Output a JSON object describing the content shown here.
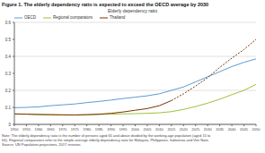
{
  "chart_data": {
    "type": "line",
    "title": "Figure 1. The elderly dependency ratio is expected to exceed the OECD average by 2030",
    "subtitle": "Elderly dependency ratio",
    "annotations": [
      "Note: The elderly dependency ratio is the number of persons aged 65 and above divided by the working-age population (aged 15 to",
      "64). Regional comparators refer to the simple average elderly dependency ratio for Malaysia, Philippines, Indonesia and Viet Nam.",
      "Source: UN Population projections, 2017 revision."
    ],
    "x": [
      1950,
      1955,
      1960,
      1965,
      1970,
      1975,
      1980,
      1985,
      1990,
      1995,
      2000,
      2005,
      2010,
      2015,
      2020,
      2025,
      2030,
      2035,
      2040,
      2045,
      2050
    ],
    "series": [
      {
        "name": "OECD",
        "color": "#5b9bd5",
        "line_style": "solid",
        "values": [
          0.098,
          0.1,
          0.103,
          0.11,
          0.115,
          0.12,
          0.128,
          0.135,
          0.143,
          0.152,
          0.16,
          0.168,
          0.18,
          0.2,
          0.22,
          0.25,
          0.28,
          0.31,
          0.34,
          0.365,
          0.385
        ]
      },
      {
        "name": "Regional comparators",
        "color": "#9dc13c",
        "line_style": "solid",
        "values": [
          0.06,
          0.06,
          0.058,
          0.057,
          0.056,
          0.056,
          0.057,
          0.058,
          0.06,
          0.062,
          0.063,
          0.065,
          0.068,
          0.075,
          0.088,
          0.105,
          0.125,
          0.148,
          0.175,
          0.2,
          0.235
        ]
      },
      {
        "name": "Thailand",
        "color": "#7b3300",
        "line_style": "solid",
        "values": [
          0.062,
          0.06,
          0.058,
          0.057,
          0.056,
          0.055,
          0.057,
          0.06,
          0.065,
          0.073,
          0.083,
          0.093,
          0.11,
          0.14,
          null,
          null,
          null,
          null,
          null,
          null,
          null
        ]
      },
      {
        "color": "#7b3300",
        "line_style": "dashed",
        "values": [
          null,
          null,
          null,
          null,
          null,
          null,
          null,
          null,
          null,
          null,
          null,
          null,
          null,
          0.14,
          0.18,
          0.225,
          0.275,
          0.335,
          0.39,
          0.44,
          0.5
        ]
      }
    ],
    "xlim": [
      1950,
      2050
    ],
    "ylim": [
      0,
      0.6
    ],
    "xticks": [
      1950,
      1955,
      1960,
      1965,
      1970,
      1975,
      1980,
      1985,
      1990,
      1995,
      2000,
      2005,
      2010,
      2015,
      2020,
      2025,
      2030,
      2035,
      2040,
      2045,
      2050
    ],
    "yticks": [
      0,
      0.1,
      0.2,
      0.3,
      0.4,
      0.5,
      0.6
    ],
    "grid": true,
    "legend": "upper left"
  }
}
